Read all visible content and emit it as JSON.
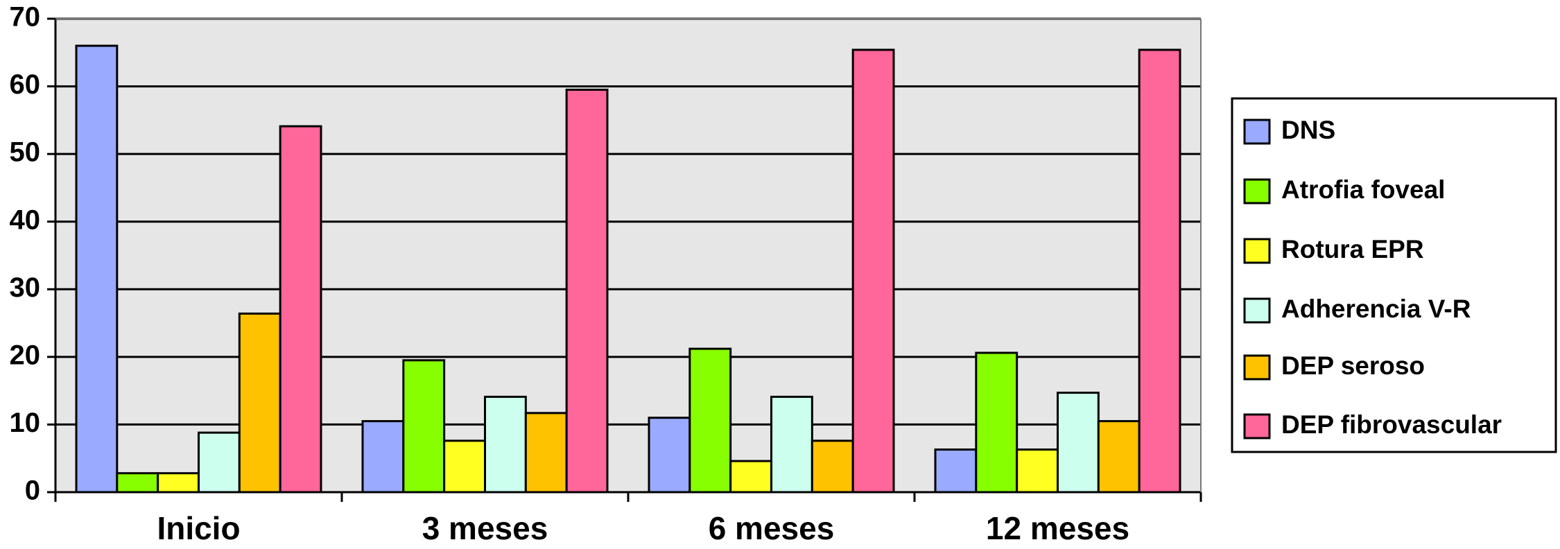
{
  "chart_data": {
    "type": "bar",
    "title": "",
    "xlabel": "",
    "ylabel": "",
    "categories": [
      "Inicio",
      "3 meses",
      "6 meses",
      "12 meses"
    ],
    "ylim": [
      0,
      70
    ],
    "yticks": [
      "0",
      "10",
      "20",
      "30",
      "40",
      "50",
      "60",
      "70"
    ],
    "grid": true,
    "legend": "right",
    "plot_background": "#e6e6e6",
    "series": [
      {
        "name": "DNS",
        "color": "#99aaff",
        "values": [
          66,
          10.5,
          11,
          6.3
        ]
      },
      {
        "name": "Atrofia foveal",
        "color": "#88ff00",
        "values": [
          2.8,
          19.5,
          21.2,
          20.6
        ]
      },
      {
        "name": "Rotura EPR",
        "color": "#ffff22",
        "values": [
          2.8,
          7.6,
          4.6,
          6.3
        ]
      },
      {
        "name": "Adherencia V-R",
        "color": "#ccffee",
        "values": [
          8.8,
          14.1,
          14.1,
          14.7
        ]
      },
      {
        "name": "DEP seroso",
        "color": "#ffc200",
        "values": [
          26.4,
          11.7,
          7.6,
          10.5
        ]
      },
      {
        "name": "DEP fibrovascular",
        "color": "#ff6699",
        "values": [
          54.1,
          59.5,
          65.4,
          65.4
        ]
      }
    ]
  }
}
